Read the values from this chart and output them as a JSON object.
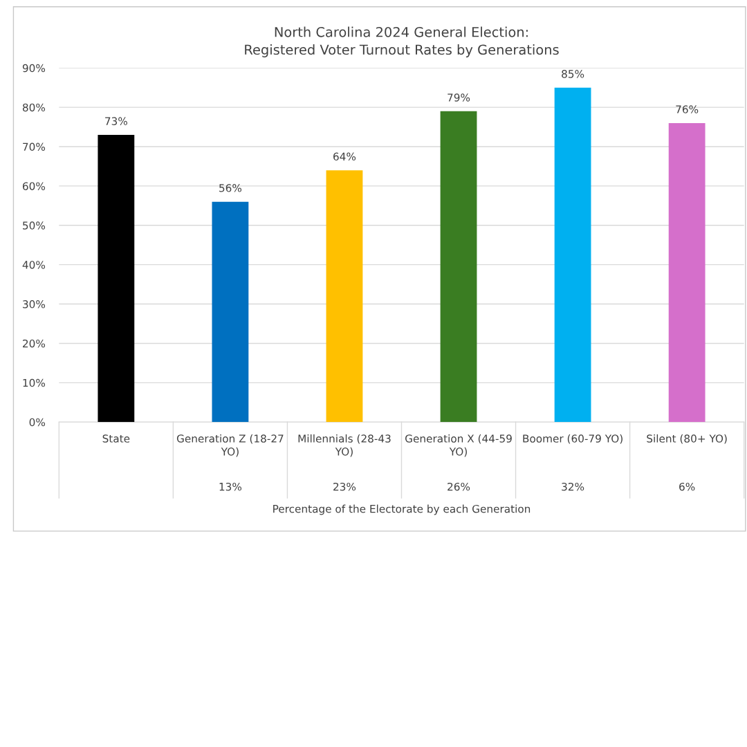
{
  "chart_data": {
    "type": "bar",
    "title": "North Carolina 2024 General Election:\nRegistered Voter Turnout Rates by Generations",
    "categories": [
      "State",
      "Generation Z (18-27 YO)",
      "Millennials (28-43 YO)",
      "Generation X (44-59 YO)",
      "Boomer (60-79 YO)",
      "Silent (80+ YO)"
    ],
    "values": [
      73,
      56,
      64,
      79,
      85,
      76
    ],
    "colors": [
      "#000000",
      "#0070c0",
      "#ffc000",
      "#3a7d22",
      "#00b0f0",
      "#d56fcb"
    ],
    "value_labels": [
      "73%",
      "56%",
      "64%",
      "79%",
      "85%",
      "76%"
    ],
    "ylim": [
      0,
      90
    ],
    "yticks": [
      {
        "value": 0,
        "label": "0%"
      },
      {
        "value": 10,
        "label": "10%"
      },
      {
        "value": 20,
        "label": "20%"
      },
      {
        "value": 30,
        "label": "30%"
      },
      {
        "value": 40,
        "label": "40%"
      },
      {
        "value": 50,
        "label": "50%"
      },
      {
        "value": 60,
        "label": "60%"
      },
      {
        "value": 70,
        "label": "70%"
      },
      {
        "value": 80,
        "label": "80%"
      },
      {
        "value": 90,
        "label": "90%"
      }
    ],
    "grid": "y",
    "xlabel": "Percentage of the Electorate by each Generation",
    "annotations": [
      "13%",
      "23%",
      "26%",
      "32%",
      "6%"
    ]
  }
}
